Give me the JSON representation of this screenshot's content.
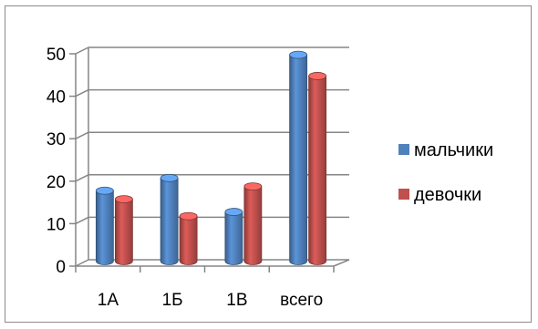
{
  "chart_data": {
    "type": "bar",
    "style": "3d-clustered-column",
    "categories": [
      "1А",
      "1Б",
      "1В",
      "всего"
    ],
    "series": [
      {
        "name": "мальчики",
        "values": [
          17,
          20,
          12,
          49
        ],
        "color": "#4f81bd"
      },
      {
        "name": "девочки",
        "values": [
          15,
          11,
          18,
          44
        ],
        "color": "#c0504d"
      }
    ],
    "y_ticks": [
      "0",
      "10",
      "20",
      "30",
      "40",
      "50"
    ],
    "ylim": [
      0,
      50
    ],
    "grid": true,
    "legend_position": "right"
  }
}
